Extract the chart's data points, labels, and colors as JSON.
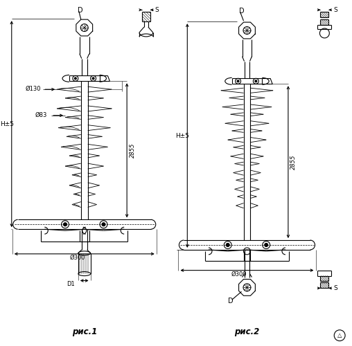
{
  "bg_color": "#ffffff",
  "line_color": "#000000",
  "fig_width": 5.08,
  "fig_height": 5.0,
  "dpi": 100,
  "label_ris1": "рис.1",
  "label_ris2": "рис.2",
  "dim_d130": "Ø130",
  "dim_d83": "Ø83",
  "dim_d300_1": "Ø300",
  "dim_d300_2": "Ø300",
  "dim_2855_1": "2855",
  "dim_2855_2": "2855",
  "dim_h5_1": "H±5",
  "dim_h5_2": "H±5",
  "dim_d1": "D1",
  "dim_d_top1": "D",
  "dim_d_top2": "D",
  "dim_d_bot2": "D",
  "dim_s_top1": "S",
  "dim_s_top2": "S",
  "dim_s_bot2": "S"
}
